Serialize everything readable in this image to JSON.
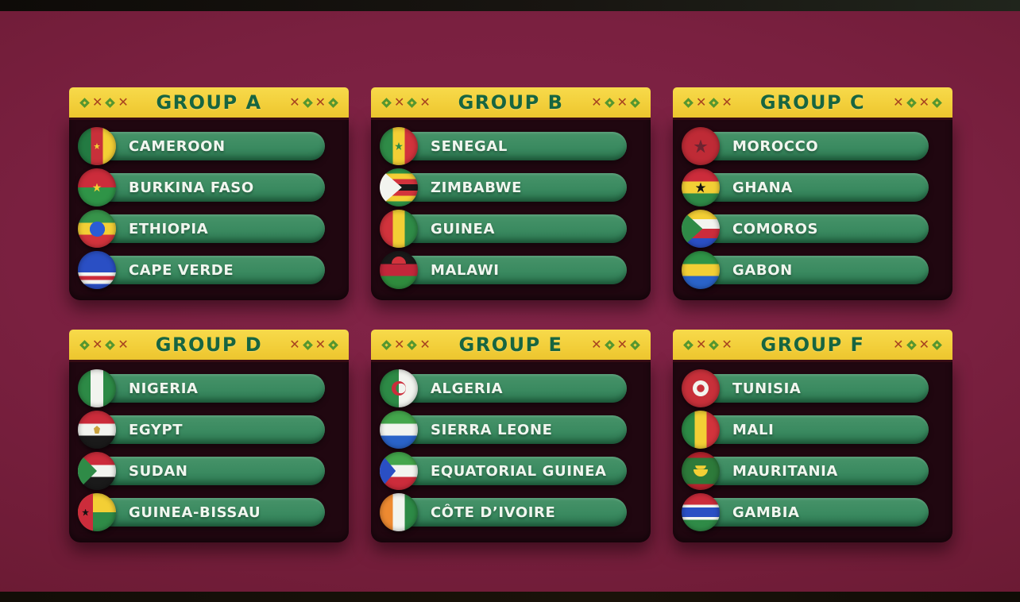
{
  "decor": {
    "left": "◆✕◆✕",
    "right": "✕◆✕◆"
  },
  "colors": {
    "background_burgundy": "#7a2040",
    "header_yellow": "#f2ce39",
    "header_text_green": "#176540",
    "pill_green": "#3a8a60",
    "card_body_dark": "#200710",
    "decor_x_red": "#a8431f",
    "decor_diamond_green": "#55962f",
    "team_text": "#f1f6ef"
  },
  "groups": [
    {
      "id": "A",
      "label": "GROUP A",
      "teams": [
        {
          "name": "CAMEROON",
          "flag": "cameroon"
        },
        {
          "name": "BURKINA FASO",
          "flag": "burkina"
        },
        {
          "name": "ETHIOPIA",
          "flag": "ethiopia"
        },
        {
          "name": "CAPE VERDE",
          "flag": "capeverde"
        }
      ]
    },
    {
      "id": "B",
      "label": "GROUP B",
      "teams": [
        {
          "name": "SENEGAL",
          "flag": "senegal"
        },
        {
          "name": "ZIMBABWE",
          "flag": "zimbabwe"
        },
        {
          "name": "GUINEA",
          "flag": "guinea"
        },
        {
          "name": "MALAWI",
          "flag": "malawi"
        }
      ]
    },
    {
      "id": "C",
      "label": "GROUP C",
      "teams": [
        {
          "name": "MOROCCO",
          "flag": "morocco"
        },
        {
          "name": "GHANA",
          "flag": "ghana"
        },
        {
          "name": "COMOROS",
          "flag": "comoros"
        },
        {
          "name": "GABON",
          "flag": "gabon"
        }
      ]
    },
    {
      "id": "D",
      "label": "GROUP D",
      "teams": [
        {
          "name": "NIGERIA",
          "flag": "nigeria"
        },
        {
          "name": "EGYPT",
          "flag": "egypt"
        },
        {
          "name": "SUDAN",
          "flag": "sudan"
        },
        {
          "name": "GUINEA-BISSAU",
          "flag": "gbissau"
        }
      ]
    },
    {
      "id": "E",
      "label": "GROUP E",
      "teams": [
        {
          "name": "ALGERIA",
          "flag": "algeria"
        },
        {
          "name": "SIERRA LEONE",
          "flag": "sleone"
        },
        {
          "name": "EQUATORIAL GUINEA",
          "flag": "eqguinea"
        },
        {
          "name": "CÔTE D’IVOIRE",
          "flag": "civoire"
        }
      ]
    },
    {
      "id": "F",
      "label": "GROUP F",
      "teams": [
        {
          "name": "TUNISIA",
          "flag": "tunisia"
        },
        {
          "name": "MALI",
          "flag": "mali"
        },
        {
          "name": "MAURITANIA",
          "flag": "mauritania"
        },
        {
          "name": "GAMBIA",
          "flag": "gambia"
        }
      ]
    }
  ]
}
